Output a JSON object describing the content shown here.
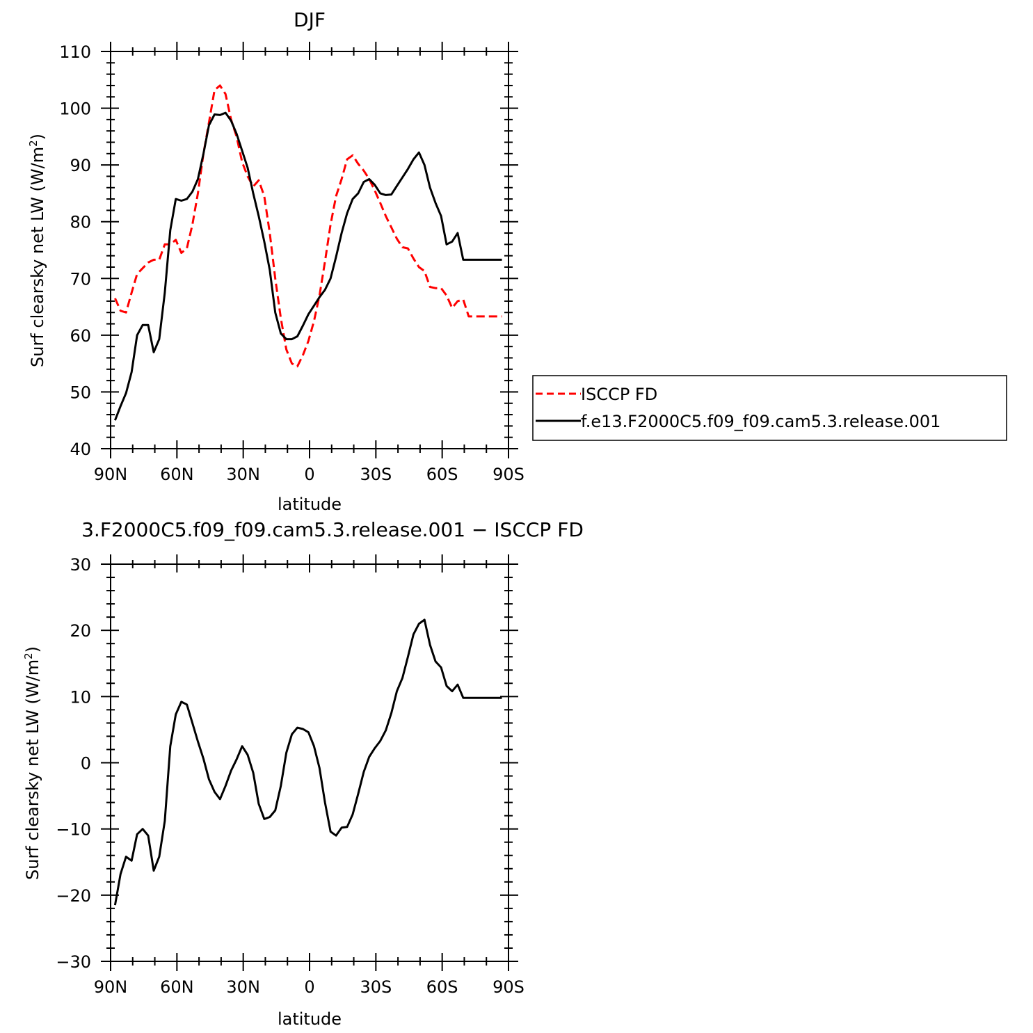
{
  "chart_data": [
    {
      "type": "line",
      "title": "DJF",
      "xlabel": "latitude",
      "ylabel": "Surf clearsky net LW (W/m",
      "ylabel_sup": "2",
      "ylabel_close": ")",
      "xlim": [
        -90,
        90
      ],
      "ylim": [
        40,
        110
      ],
      "x_ticks": [
        -90,
        -60,
        -30,
        0,
        30,
        60,
        90
      ],
      "x_tick_labels": [
        "90N",
        "60N",
        "30N",
        "0",
        "30S",
        "60S",
        "90S"
      ],
      "y_ticks": [
        40,
        50,
        60,
        70,
        80,
        90,
        100,
        110
      ],
      "y_tick_labels": [
        "40",
        "50",
        "60",
        "70",
        "80",
        "90",
        "100",
        "110"
      ],
      "legend_position": "right",
      "series": [
        {
          "name": "ISCCP FD",
          "color": "#ff0000",
          "dash": "dashed",
          "x": [
            -88.0,
            -85.5,
            -83.0,
            -80.5,
            -78.0,
            -75.5,
            -73.0,
            -70.5,
            -68.0,
            -65.5,
            -63.0,
            -60.5,
            -58.0,
            -55.5,
            -53.0,
            -50.5,
            -48.0,
            -45.5,
            -43.0,
            -40.5,
            -38.0,
            -35.5,
            -33.0,
            -30.5,
            -28.0,
            -25.5,
            -23.0,
            -20.5,
            -18.0,
            -15.5,
            -13.0,
            -10.5,
            -8.0,
            -5.5,
            -3.0,
            -0.5,
            2.0,
            4.5,
            7.0,
            9.5,
            12.0,
            14.5,
            17.0,
            19.5,
            22.0,
            24.5,
            27.0,
            29.5,
            32.0,
            34.5,
            37.0,
            39.5,
            42.0,
            44.5,
            47.0,
            49.5,
            52.0,
            54.5,
            57.0,
            59.5,
            62.0,
            64.5,
            67.0,
            69.5,
            72.0,
            74.5,
            77.0,
            79.5,
            82.0,
            84.5,
            87.0
          ],
          "y": [
            66.5,
            64.3,
            64.0,
            67.5,
            70.8,
            71.8,
            72.8,
            73.3,
            73.3,
            76.0,
            76.0,
            76.8,
            74.5,
            75.3,
            79.5,
            85.0,
            92.0,
            97.5,
            103.2,
            104.0,
            102.5,
            98.0,
            95.0,
            90.5,
            88.0,
            86.2,
            87.3,
            84.5,
            78.0,
            70.0,
            63.0,
            57.5,
            55.0,
            54.5,
            56.5,
            59.0,
            62.5,
            67.0,
            73.0,
            79.5,
            84.5,
            87.5,
            91.0,
            91.7,
            90.2,
            89.0,
            87.5,
            85.5,
            83.3,
            81.0,
            79.0,
            77.0,
            75.5,
            75.3,
            73.5,
            72.0,
            71.3,
            68.5,
            68.3,
            68.3,
            67.0,
            64.8,
            66.0,
            66.3,
            63.3,
            63.3,
            63.3,
            63.3,
            63.3,
            63.3,
            63.3
          ]
        },
        {
          "name": "f.e13.F2000C5.f09_f09.cam5.3.release.001",
          "color": "#000000",
          "dash": "solid",
          "x": [
            -88.0,
            -85.5,
            -83.0,
            -80.5,
            -78.0,
            -75.5,
            -73.0,
            -70.5,
            -68.0,
            -65.5,
            -63.0,
            -60.5,
            -58.0,
            -55.5,
            -53.0,
            -50.5,
            -48.0,
            -45.5,
            -43.0,
            -40.5,
            -38.0,
            -35.5,
            -33.0,
            -30.5,
            -28.0,
            -25.5,
            -23.0,
            -20.5,
            -18.0,
            -15.5,
            -13.0,
            -10.5,
            -8.0,
            -5.5,
            -3.0,
            -0.5,
            2.0,
            4.5,
            7.0,
            9.5,
            12.0,
            14.5,
            17.0,
            19.5,
            22.0,
            24.5,
            27.0,
            29.5,
            32.0,
            34.5,
            37.0,
            39.5,
            42.0,
            44.5,
            47.0,
            49.5,
            52.0,
            54.5,
            57.0,
            59.5,
            62.0,
            64.5,
            67.0,
            69.5,
            72.0,
            74.5,
            77.0,
            79.5,
            82.0,
            84.5,
            87.0
          ],
          "y": [
            45.0,
            47.5,
            49.8,
            53.5,
            60.0,
            61.8,
            61.8,
            57.0,
            59.3,
            67.5,
            78.5,
            84.0,
            83.7,
            84.0,
            85.3,
            87.5,
            92.0,
            97.0,
            98.9,
            98.8,
            99.2,
            97.8,
            95.5,
            92.5,
            89.5,
            85.0,
            81.0,
            76.5,
            71.5,
            64.0,
            60.3,
            59.3,
            59.3,
            59.8,
            61.7,
            63.7,
            65.2,
            66.7,
            68.0,
            70.0,
            73.8,
            78.0,
            81.5,
            84.0,
            85.0,
            87.0,
            87.5,
            86.5,
            85.0,
            84.7,
            84.8,
            86.3,
            87.8,
            89.3,
            91.0,
            92.2,
            90.0,
            86.0,
            83.3,
            81.0,
            76.0,
            76.5,
            78.0,
            73.3,
            73.3,
            73.3,
            73.3,
            73.3,
            73.3,
            73.3,
            73.3
          ]
        }
      ]
    },
    {
      "type": "line",
      "title": "3.F2000C5.f09_f09.cam5.3.release.001 − ISCCP FD",
      "xlabel": "latitude",
      "ylabel": "Surf clearsky net LW (W/m",
      "ylabel_sup": "2",
      "ylabel_close": ")",
      "xlim": [
        -90,
        90
      ],
      "ylim": [
        -30,
        30
      ],
      "x_ticks": [
        -90,
        -60,
        -30,
        0,
        30,
        60,
        90
      ],
      "x_tick_labels": [
        "90N",
        "60N",
        "30N",
        "0",
        "30S",
        "60S",
        "90S"
      ],
      "y_ticks": [
        -30,
        -20,
        -10,
        0,
        10,
        20,
        30
      ],
      "y_tick_labels": [
        "−30",
        "−20",
        "−10",
        "0",
        "10",
        "20",
        "30"
      ],
      "series": [
        {
          "color": "#000000",
          "dash": "solid",
          "x": [
            -88.0,
            -85.5,
            -83.0,
            -80.5,
            -78.0,
            -75.5,
            -73.0,
            -70.5,
            -68.0,
            -65.5,
            -63.0,
            -60.5,
            -58.0,
            -55.5,
            -53.0,
            -50.5,
            -48.0,
            -45.5,
            -43.0,
            -40.5,
            -38.0,
            -35.5,
            -33.0,
            -30.5,
            -28.0,
            -25.5,
            -23.0,
            -20.5,
            -18.0,
            -15.5,
            -13.0,
            -10.5,
            -8.0,
            -5.5,
            -3.0,
            -0.5,
            2.0,
            4.5,
            7.0,
            9.5,
            12.0,
            14.5,
            17.0,
            19.5,
            22.0,
            24.5,
            27.0,
            29.5,
            32.0,
            34.5,
            37.0,
            39.5,
            42.0,
            44.5,
            47.0,
            49.5,
            52.0,
            54.5,
            57.0,
            59.5,
            62.0,
            64.5,
            67.0,
            69.5,
            72.0,
            74.5,
            77.0,
            79.5,
            82.0,
            84.5,
            87.0
          ],
          "y": [
            -21.5,
            -16.8,
            -14.2,
            -14.8,
            -10.8,
            -10.0,
            -11.0,
            -16.3,
            -14.2,
            -8.8,
            2.5,
            7.3,
            9.2,
            8.8,
            6.0,
            3.2,
            0.6,
            -2.5,
            -4.4,
            -5.5,
            -3.5,
            -1.2,
            0.5,
            2.5,
            1.2,
            -1.5,
            -6.2,
            -8.5,
            -8.2,
            -7.2,
            -3.5,
            1.5,
            4.3,
            5.3,
            5.1,
            4.6,
            2.5,
            -0.8,
            -6.0,
            -10.4,
            -11.0,
            -9.8,
            -9.7,
            -7.8,
            -4.7,
            -1.4,
            0.9,
            2.2,
            3.3,
            4.9,
            7.5,
            10.8,
            12.8,
            16.0,
            19.4,
            21.0,
            21.6,
            17.8,
            15.3,
            14.4,
            11.6,
            10.8,
            11.8,
            9.8,
            9.8,
            9.8,
            9.8,
            9.8,
            9.8,
            9.8,
            9.8
          ]
        }
      ]
    }
  ]
}
